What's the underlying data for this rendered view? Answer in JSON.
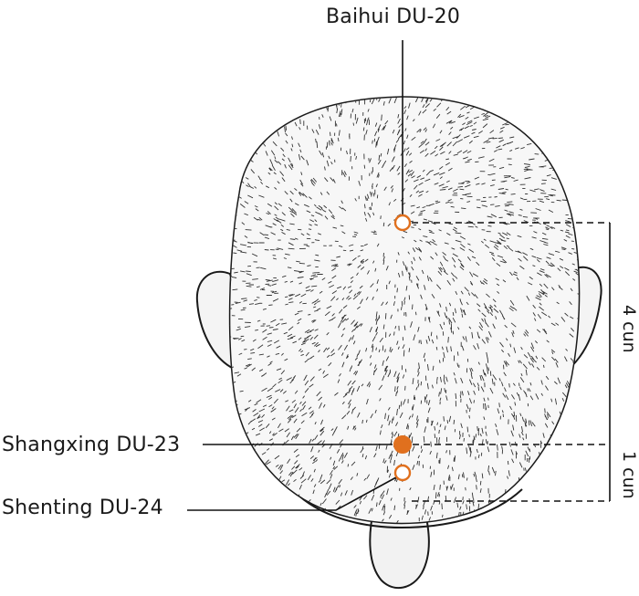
{
  "points": [
    {
      "name": "Baihui",
      "code": "DU-20",
      "label": "Baihui DU-20",
      "marker": "hollow",
      "marker_color": "#e0701e"
    },
    {
      "name": "Shangxing",
      "code": "DU-23",
      "label": "Shangxing DU-23",
      "marker": "filled",
      "marker_color": "#e0701e"
    },
    {
      "name": "Shenting",
      "code": "DU-24",
      "label": "Shenting DU-24",
      "marker": "hollow",
      "marker_color": "#e0701e"
    }
  ],
  "measurements": [
    {
      "label": "4 cun"
    },
    {
      "label": "1 cun"
    }
  ],
  "colors": {
    "marker": "#e0701e",
    "line": "#111111",
    "skin_outline": "#1a1a1a",
    "hair_stroke": "#333333"
  }
}
